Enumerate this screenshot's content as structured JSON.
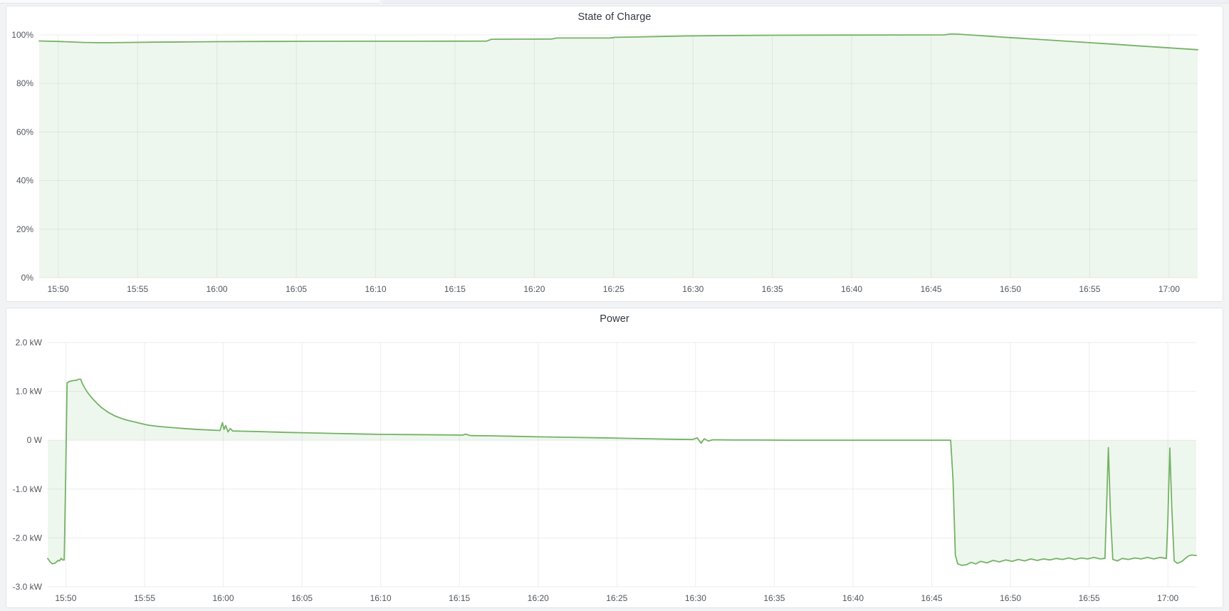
{
  "page": {
    "background": "#f2f3f5",
    "panel_background": "#ffffff",
    "panel_border": "#e2e4e7",
    "grid_color": "rgba(36,41,46,0.08)",
    "tick_text_color": "#52565c",
    "title_text_color": "#33383d",
    "series_line_color": "#74b266",
    "series_fill_color": "rgba(115,191,105,0.12)",
    "header_strip": {
      "left_bg": "#fafbfc",
      "right_bg": "#eef0f5",
      "border": "#e3e5ea"
    }
  },
  "panels": [
    {
      "title": "State of Charge"
    },
    {
      "title": "Power"
    }
  ],
  "chart_data": [
    {
      "type": "area",
      "title": "State of Charge",
      "ylabel": "",
      "xlabel": "",
      "unit": "percent",
      "x_unit": "minutes relative to 15:50",
      "x_range": [
        -1.2,
        71.8
      ],
      "y_range": [
        0,
        100
      ],
      "grid": true,
      "legend": "none",
      "x_ticks": [
        {
          "t": 0,
          "label": "15:50"
        },
        {
          "t": 5,
          "label": "15:55"
        },
        {
          "t": 10,
          "label": "16:00"
        },
        {
          "t": 15,
          "label": "16:05"
        },
        {
          "t": 20,
          "label": "16:10"
        },
        {
          "t": 25,
          "label": "16:15"
        },
        {
          "t": 30,
          "label": "16:20"
        },
        {
          "t": 35,
          "label": "16:25"
        },
        {
          "t": 40,
          "label": "16:30"
        },
        {
          "t": 45,
          "label": "16:35"
        },
        {
          "t": 50,
          "label": "16:40"
        },
        {
          "t": 55,
          "label": "16:45"
        },
        {
          "t": 60,
          "label": "16:50"
        },
        {
          "t": 65,
          "label": "16:55"
        },
        {
          "t": 70,
          "label": "17:00"
        }
      ],
      "y_ticks": [
        {
          "v": 100,
          "label": "100%"
        },
        {
          "v": 80,
          "label": "80%"
        },
        {
          "v": 60,
          "label": "60%"
        },
        {
          "v": 40,
          "label": "40%"
        },
        {
          "v": 20,
          "label": "20%"
        },
        {
          "v": 0,
          "label": "0%"
        }
      ],
      "points": [
        [
          -1.2,
          97.5
        ],
        [
          -0.6,
          97.4
        ],
        [
          0,
          97.3
        ],
        [
          0.8,
          97.1
        ],
        [
          1.6,
          96.9
        ],
        [
          2.4,
          96.8
        ],
        [
          3.4,
          96.8
        ],
        [
          4.4,
          96.9
        ],
        [
          6,
          97.0
        ],
        [
          8,
          97.1
        ],
        [
          10,
          97.2
        ],
        [
          13,
          97.3
        ],
        [
          16,
          97.35
        ],
        [
          19,
          97.4
        ],
        [
          23,
          97.4
        ],
        [
          27.0,
          97.45
        ],
        [
          27.3,
          98.2
        ],
        [
          29,
          98.25
        ],
        [
          31.1,
          98.3
        ],
        [
          31.4,
          98.7
        ],
        [
          33,
          98.7
        ],
        [
          34.8,
          98.75
        ],
        [
          35.1,
          99.0
        ],
        [
          36.5,
          99.15
        ],
        [
          38,
          99.35
        ],
        [
          39.5,
          99.55
        ],
        [
          41,
          99.65
        ],
        [
          43,
          99.78
        ],
        [
          45,
          99.85
        ],
        [
          48,
          99.9
        ],
        [
          51,
          99.95
        ],
        [
          54,
          99.97
        ],
        [
          55.8,
          100.0
        ],
        [
          56.3,
          100.4
        ],
        [
          56.8,
          100.25
        ],
        [
          58,
          99.75
        ],
        [
          60,
          98.9
        ],
        [
          62,
          98.06
        ],
        [
          64,
          97.2
        ],
        [
          66,
          96.4
        ],
        [
          68,
          95.5
        ],
        [
          70,
          94.66
        ],
        [
          71.8,
          93.9
        ]
      ]
    },
    {
      "type": "area",
      "title": "Power",
      "ylabel": "",
      "xlabel": "",
      "unit": "kW",
      "x_unit": "minutes relative to 15:50",
      "x_range": [
        -1.15,
        71.8
      ],
      "y_range": [
        -3,
        2
      ],
      "grid": true,
      "legend": "none",
      "x_ticks": [
        {
          "t": 0,
          "label": "15:50"
        },
        {
          "t": 5,
          "label": "15:55"
        },
        {
          "t": 10,
          "label": "16:00"
        },
        {
          "t": 15,
          "label": "16:05"
        },
        {
          "t": 20,
          "label": "16:10"
        },
        {
          "t": 25,
          "label": "16:15"
        },
        {
          "t": 30,
          "label": "16:20"
        },
        {
          "t": 35,
          "label": "16:25"
        },
        {
          "t": 40,
          "label": "16:30"
        },
        {
          "t": 45,
          "label": "16:35"
        },
        {
          "t": 50,
          "label": "16:40"
        },
        {
          "t": 55,
          "label": "16:45"
        },
        {
          "t": 60,
          "label": "16:50"
        },
        {
          "t": 65,
          "label": "16:55"
        },
        {
          "t": 70,
          "label": "17:00"
        }
      ],
      "y_ticks": [
        {
          "v": 2,
          "label": "2.0 kW"
        },
        {
          "v": 1,
          "label": "1.0 kW"
        },
        {
          "v": 0,
          "label": "0 W"
        },
        {
          "v": -1,
          "label": "-1.0 kW"
        },
        {
          "v": -2,
          "label": "-2.0 kW"
        },
        {
          "v": -3,
          "label": "-3.0 kW"
        }
      ],
      "points": [
        [
          -1.15,
          -2.42
        ],
        [
          -1.0,
          -2.49
        ],
        [
          -0.85,
          -2.53
        ],
        [
          -0.65,
          -2.51
        ],
        [
          -0.5,
          -2.46
        ],
        [
          -0.4,
          -2.47
        ],
        [
          -0.3,
          -2.42
        ],
        [
          -0.2,
          -2.45
        ],
        [
          -0.1,
          -2.45
        ],
        [
          0.0,
          -0.6
        ],
        [
          0.08,
          1.17
        ],
        [
          0.2,
          1.2
        ],
        [
          0.45,
          1.22
        ],
        [
          0.7,
          1.23
        ],
        [
          0.82,
          1.25
        ],
        [
          0.95,
          1.25
        ],
        [
          1.05,
          1.16
        ],
        [
          1.2,
          1.07
        ],
        [
          1.4,
          0.97
        ],
        [
          1.7,
          0.85
        ],
        [
          2.0,
          0.75
        ],
        [
          2.3,
          0.66
        ],
        [
          2.7,
          0.57
        ],
        [
          3.1,
          0.5
        ],
        [
          3.5,
          0.45
        ],
        [
          3.9,
          0.41
        ],
        [
          4.3,
          0.38
        ],
        [
          4.8,
          0.34
        ],
        [
          5.2,
          0.31
        ],
        [
          5.8,
          0.285
        ],
        [
          6.5,
          0.265
        ],
        [
          7.3,
          0.245
        ],
        [
          8.2,
          0.225
        ],
        [
          9.1,
          0.21
        ],
        [
          9.8,
          0.2
        ],
        [
          9.95,
          0.36
        ],
        [
          10.05,
          0.22
        ],
        [
          10.15,
          0.3
        ],
        [
          10.3,
          0.17
        ],
        [
          10.45,
          0.24
        ],
        [
          10.6,
          0.19
        ],
        [
          11.2,
          0.185
        ],
        [
          12.5,
          0.175
        ],
        [
          14,
          0.16
        ],
        [
          15.5,
          0.15
        ],
        [
          17,
          0.14
        ],
        [
          18.5,
          0.13
        ],
        [
          20,
          0.12
        ],
        [
          22,
          0.115
        ],
        [
          24,
          0.11
        ],
        [
          25.2,
          0.105
        ],
        [
          25.4,
          0.125
        ],
        [
          25.7,
          0.095
        ],
        [
          27,
          0.09
        ],
        [
          28.5,
          0.08
        ],
        [
          30,
          0.07
        ],
        [
          32,
          0.06
        ],
        [
          34,
          0.05
        ],
        [
          35.5,
          0.04
        ],
        [
          37,
          0.03
        ],
        [
          38.5,
          0.02
        ],
        [
          39.8,
          0.015
        ],
        [
          40.1,
          0.05
        ],
        [
          40.35,
          -0.06
        ],
        [
          40.55,
          0.03
        ],
        [
          40.8,
          -0.015
        ],
        [
          41.1,
          0.01
        ],
        [
          42.5,
          0.005
        ],
        [
          44,
          0.005
        ],
        [
          46,
          0.0
        ],
        [
          48,
          0.0
        ],
        [
          50,
          0.0
        ],
        [
          52,
          0.0
        ],
        [
          54,
          0.0
        ],
        [
          56.2,
          0.0
        ],
        [
          56.35,
          -0.8
        ],
        [
          56.5,
          -2.35
        ],
        [
          56.65,
          -2.53
        ],
        [
          56.9,
          -2.56
        ],
        [
          57.2,
          -2.55
        ],
        [
          57.5,
          -2.5
        ],
        [
          57.8,
          -2.53
        ],
        [
          58.1,
          -2.48
        ],
        [
          58.5,
          -2.51
        ],
        [
          58.9,
          -2.46
        ],
        [
          59.3,
          -2.49
        ],
        [
          59.7,
          -2.45
        ],
        [
          60.1,
          -2.48
        ],
        [
          60.5,
          -2.44
        ],
        [
          60.9,
          -2.47
        ],
        [
          61.3,
          -2.43
        ],
        [
          61.7,
          -2.46
        ],
        [
          62.1,
          -2.43
        ],
        [
          62.5,
          -2.45
        ],
        [
          62.9,
          -2.42
        ],
        [
          63.3,
          -2.44
        ],
        [
          63.7,
          -2.41
        ],
        [
          64.1,
          -2.44
        ],
        [
          64.5,
          -2.41
        ],
        [
          64.9,
          -2.43
        ],
        [
          65.3,
          -2.4
        ],
        [
          65.7,
          -2.43
        ],
        [
          66.0,
          -2.42
        ],
        [
          66.1,
          -1.4
        ],
        [
          66.22,
          -0.15
        ],
        [
          66.35,
          -1.5
        ],
        [
          66.5,
          -2.44
        ],
        [
          66.8,
          -2.47
        ],
        [
          67.1,
          -2.42
        ],
        [
          67.5,
          -2.44
        ],
        [
          67.9,
          -2.41
        ],
        [
          68.3,
          -2.43
        ],
        [
          68.7,
          -2.4
        ],
        [
          69.1,
          -2.43
        ],
        [
          69.5,
          -2.4
        ],
        [
          69.9,
          -2.42
        ],
        [
          70.0,
          -1.6
        ],
        [
          70.12,
          -0.16
        ],
        [
          70.25,
          -1.4
        ],
        [
          70.4,
          -2.47
        ],
        [
          70.6,
          -2.52
        ],
        [
          70.9,
          -2.48
        ],
        [
          71.1,
          -2.42
        ],
        [
          71.3,
          -2.37
        ],
        [
          71.5,
          -2.35
        ],
        [
          71.8,
          -2.36
        ]
      ]
    }
  ]
}
